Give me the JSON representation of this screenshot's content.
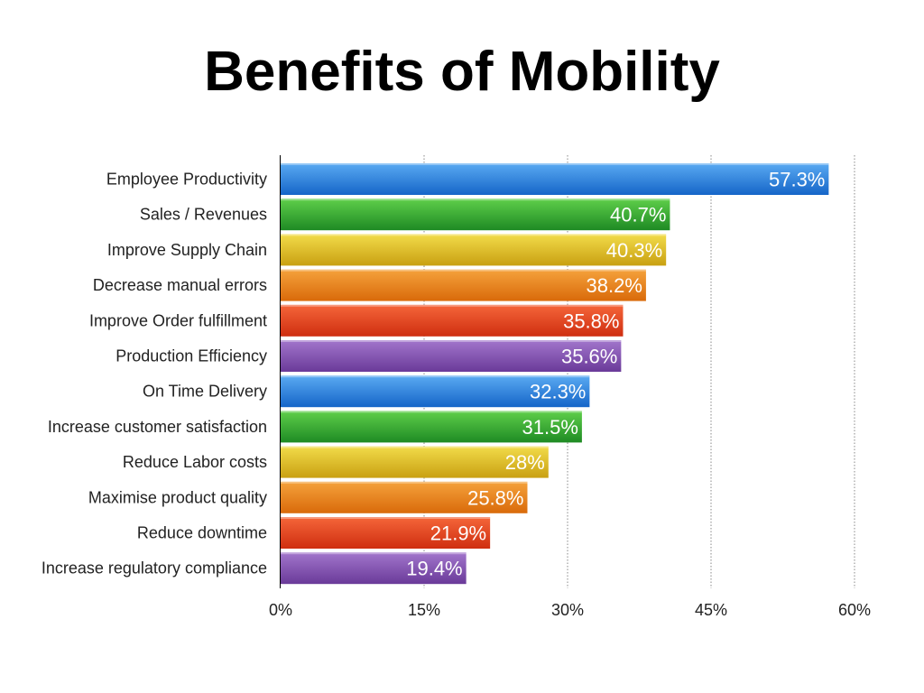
{
  "slide": {
    "title": "Benefits of Mobility"
  },
  "chart_data": {
    "type": "bar",
    "orientation": "horizontal",
    "title": "Benefits of Mobility",
    "xlabel": "",
    "ylabel": "",
    "categories": [
      "Employee Productivity",
      "Sales / Revenues",
      "Improve Supply Chain",
      "Decrease manual errors",
      "Improve Order fulfillment",
      "Production Efficiency",
      "On Time Delivery",
      "Increase customer satisfaction",
      "Reduce Labor costs",
      "Maximise product quality",
      "Reduce downtime",
      "Increase regulatory compliance"
    ],
    "values": [
      57.3,
      40.7,
      40.3,
      38.2,
      35.8,
      35.6,
      32.3,
      31.5,
      28,
      25.8,
      21.9,
      19.4
    ],
    "value_labels": [
      "57.3%",
      "40.7%",
      "40.3%",
      "38.2%",
      "35.8%",
      "35.6%",
      "32.3%",
      "31.5%",
      "28%",
      "25.8%",
      "21.9%",
      "19.4%"
    ],
    "xlim": [
      0,
      60
    ],
    "xticks": [
      0,
      15,
      30,
      45,
      60
    ],
    "xtick_labels": [
      "0%",
      "15%",
      "30%",
      "45%",
      "60%"
    ],
    "grid": "vertical dotted",
    "legend": "none",
    "bar_colors": [
      "#1a73d9",
      "#2aa02a",
      "#d9b41a",
      "#e67a12",
      "#e0401a",
      "#7d4aa8",
      "#1a73d9",
      "#2aa02a",
      "#d9b41a",
      "#e67a12",
      "#e0401a",
      "#7d4aa8"
    ],
    "bar_gradients": [
      [
        "#5aaaf2",
        "#1565c8"
      ],
      [
        "#5fcf4a",
        "#1e8a24"
      ],
      [
        "#f2dc4a",
        "#c9a012"
      ],
      [
        "#f5a23c",
        "#d96a0a"
      ],
      [
        "#f5663a",
        "#cf2e10"
      ],
      [
        "#a276cc",
        "#6a3a99"
      ],
      [
        "#5aaaf2",
        "#1565c8"
      ],
      [
        "#5fcf4a",
        "#1e8a24"
      ],
      [
        "#f2dc4a",
        "#c9a012"
      ],
      [
        "#f5a23c",
        "#d96a0a"
      ],
      [
        "#f5663a",
        "#cf2e10"
      ],
      [
        "#a276cc",
        "#6a3a99"
      ]
    ]
  }
}
